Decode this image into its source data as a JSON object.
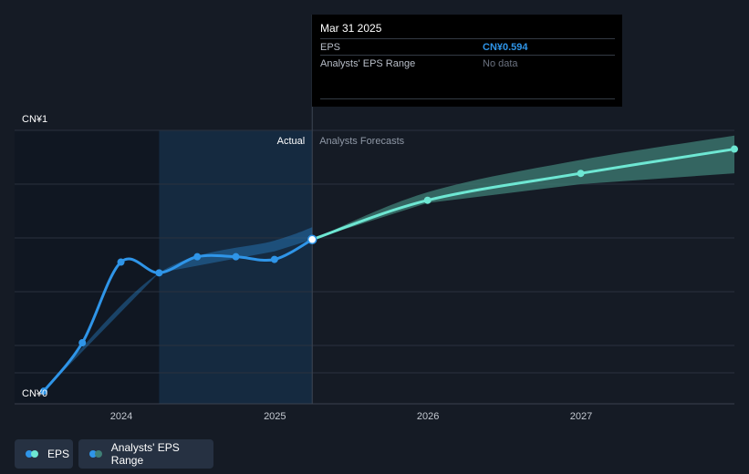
{
  "chart_data": {
    "type": "line",
    "y_tick_labels": [
      "CN¥1",
      "CN¥0"
    ],
    "ylim": [
      0,
      1
    ],
    "x_tick_labels": [
      "2024",
      "2025",
      "2026",
      "2027"
    ],
    "region_labels": {
      "actual": "Actual",
      "forecast": "Analysts Forecasts"
    },
    "series": [
      {
        "name": "EPS",
        "color": "#2f95e8",
        "points": [
          {
            "x": "2023-06-30",
            "y": 0.03
          },
          {
            "x": "2023-09-30",
            "y": 0.21
          },
          {
            "x": "2023-12-31",
            "y": 0.51
          },
          {
            "x": "2024-03-31",
            "y": 0.47
          },
          {
            "x": "2024-06-30",
            "y": 0.53
          },
          {
            "x": "2024-09-30",
            "y": 0.53
          },
          {
            "x": "2024-12-31",
            "y": 0.52
          },
          {
            "x": "2025-03-31",
            "y": 0.594
          }
        ]
      },
      {
        "name": "EPS Forecast",
        "color": "#6ee7d3",
        "points": [
          {
            "x": "2025-03-31",
            "y": 0.594
          },
          {
            "x": "2025-12-31",
            "y": 0.74
          },
          {
            "x": "2026-12-31",
            "y": 0.84
          },
          {
            "x": "2027-12-31",
            "y": 0.93
          }
        ]
      }
    ],
    "range_band": {
      "name": "Analysts' EPS Range",
      "color": "#3f7f76",
      "points": [
        {
          "x": "2025-03-31",
          "low": 0.594,
          "high": 0.594
        },
        {
          "x": "2025-12-31",
          "low": 0.73,
          "high": 0.77
        },
        {
          "x": "2026-12-31",
          "low": 0.8,
          "high": 0.89
        },
        {
          "x": "2027-12-31",
          "low": 0.84,
          "high": 0.98
        }
      ]
    },
    "past_range_band": {
      "points": [
        {
          "x": "2023-06-30",
          "low": 0.03,
          "high": 0.03
        },
        {
          "x": "2024-03-31",
          "low": 0.47,
          "high": 0.47
        },
        {
          "x": "2024-12-31",
          "low": 0.55,
          "high": 0.59
        },
        {
          "x": "2025-03-31",
          "low": 0.594,
          "high": 0.64
        }
      ]
    }
  },
  "tooltip": {
    "date": "Mar 31 2025",
    "rows": [
      {
        "label": "EPS",
        "value": "CN¥0.594"
      },
      {
        "label": "Analysts' EPS Range",
        "value": "No data"
      }
    ]
  },
  "legend": {
    "eps_label": "EPS",
    "range_label": "Analysts' EPS Range",
    "eps_colors": [
      "#2f95e8",
      "#6ee7d3"
    ],
    "range_colors": [
      "#2f95e8",
      "#3f7f76"
    ]
  }
}
